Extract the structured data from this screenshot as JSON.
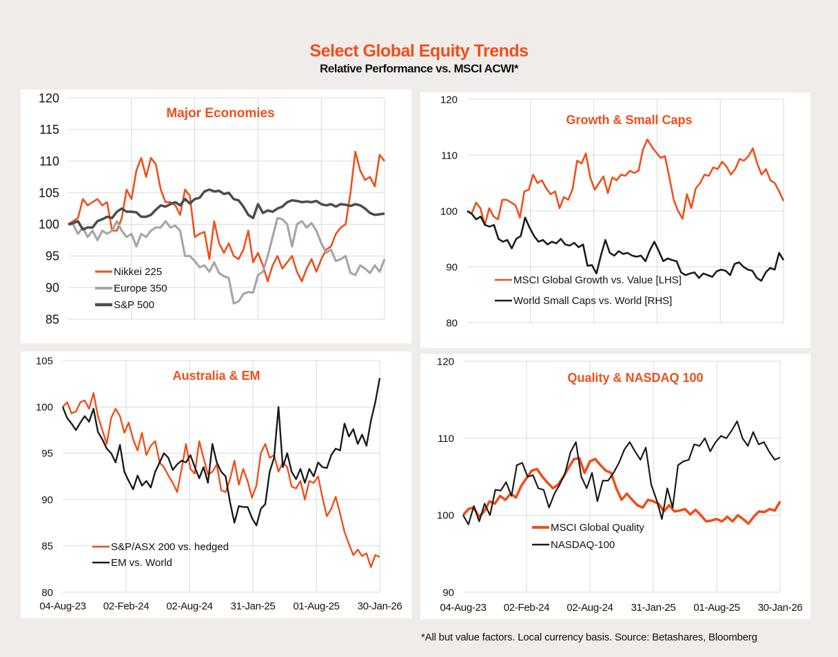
{
  "header": {
    "title": "Select Global Equity Trends",
    "subtitle": "Relative Performance vs. MSCI ACWI*"
  },
  "footnote": "*All but value factors. Local currency basis.  Source: Betashares, Bloomberg",
  "colors": {
    "orange": "#f04e1a",
    "grey_light": "#a6a6a6",
    "grey_dark": "#4d4d4d",
    "black": "#1a1a1a",
    "title": "#f04e1a"
  },
  "chart_data": [
    {
      "id": "major",
      "type": "line",
      "title": "Major Economies",
      "xlabel": "",
      "ylabel": "",
      "x_range": [
        "04-Aug-23",
        "30-Jan-26"
      ],
      "xtick_labels": [],
      "ylim": [
        85,
        120
      ],
      "yticks": [
        85,
        90,
        95,
        100,
        105,
        110,
        115,
        120
      ],
      "grid": true,
      "legend": "bottom-left",
      "series": [
        {
          "name": "Nikkei 225",
          "color": "#f04e1a",
          "values": [
            100,
            100.5,
            101,
            104,
            103,
            103.5,
            104,
            103,
            103.5,
            99,
            99,
            101,
            105.5,
            104,
            108.5,
            110.5,
            107.5,
            110.5,
            109.5,
            105.5,
            103.5,
            103.5,
            103,
            101.5,
            105.5,
            104.5,
            98,
            98.5,
            98.8,
            94.5,
            100.5,
            97,
            95.5,
            97,
            95,
            94.5,
            96,
            99,
            94,
            95.5,
            93.5,
            91,
            93.5,
            95,
            93,
            94,
            95,
            92.5,
            91,
            93,
            94.5,
            92.5,
            94.5,
            96,
            96.5,
            98.5,
            99.5,
            100,
            105,
            111.5,
            108.5,
            107,
            107.5,
            106,
            111,
            110
          ]
        },
        {
          "name": "Europe 350",
          "color": "#a6a6a6",
          "values": [
            100,
            100,
            98.5,
            99.5,
            98,
            99,
            97.5,
            99,
            98.5,
            99,
            100.5,
            99,
            98,
            98.5,
            96.5,
            98.5,
            98,
            99,
            99.5,
            99.5,
            100.5,
            99.5,
            99.8,
            99,
            95,
            95,
            94.2,
            93.2,
            93.5,
            92.5,
            94,
            92.3,
            91.8,
            91.5,
            87.5,
            87.8,
            89,
            89.3,
            89.2,
            92,
            92.5,
            95,
            98,
            101,
            100.8,
            100,
            96.5,
            100,
            100.5,
            99.5,
            100.2,
            99,
            97,
            95.5,
            96,
            94.2,
            94.5,
            95,
            92.3,
            92,
            93.5,
            93,
            92.3,
            93.5,
            92.5,
            94.5
          ]
        },
        {
          "name": "S&P 500",
          "color": "#4d4d4d",
          "values": [
            100,
            100.2,
            100.5,
            99.2,
            99.5,
            99.5,
            100.5,
            100.8,
            101.2,
            101,
            102,
            102.5,
            102,
            102,
            101.9,
            101.2,
            101.2,
            101.5,
            102.3,
            103,
            102.8,
            103.2,
            103.5,
            103,
            104,
            103.3,
            104,
            104.2,
            105.2,
            105.5,
            105.2,
            105.3,
            104.8,
            105,
            104,
            103.8,
            102.8,
            101.5,
            101,
            103.2,
            101.8,
            102.2,
            102,
            102.5,
            102.8,
            103.5,
            103.8,
            103.7,
            103.5,
            103.6,
            103.5,
            103.7,
            103.2,
            103,
            103.2,
            102.8,
            103.2,
            103.1,
            102.9,
            103.2,
            103,
            102.5,
            101.8,
            101.5,
            101.6,
            101.7
          ]
        }
      ]
    },
    {
      "id": "growth",
      "type": "line",
      "title": "Growth & Small Caps",
      "xlabel": "",
      "ylabel": "",
      "x_range": [
        "04-Aug-23",
        "30-Jan-26"
      ],
      "xtick_labels": [],
      "ylim": [
        80,
        120
      ],
      "yticks": [
        80,
        90,
        100,
        110,
        120
      ],
      "grid": true,
      "legend": "bottom-left",
      "series": [
        {
          "name": "MSCI Global Growth vs. Value [LHS]",
          "color": "#f04e1a",
          "values": [
            100,
            99.5,
            101.5,
            100.5,
            97.5,
            100.5,
            99,
            98.5,
            102,
            102,
            101.5,
            101,
            98.8,
            103.5,
            103.8,
            106.5,
            105,
            105.5,
            104,
            103,
            103.5,
            100.5,
            102.5,
            102,
            104,
            109,
            108.5,
            110.3,
            106,
            103.8,
            105,
            106.2,
            103.2,
            106,
            105.5,
            106.5,
            106.3,
            107.2,
            106.8,
            107.2,
            111,
            112.8,
            111.5,
            110.5,
            109.5,
            109.8,
            106,
            102,
            100,
            98.6,
            103,
            100.5,
            104,
            105,
            106.5,
            106.3,
            107.8,
            107.5,
            108.8,
            108,
            106.5,
            107.5,
            109.3,
            109,
            109.8,
            111.2,
            108.5,
            106.5,
            107.5,
            105.5,
            105,
            103.5,
            101.8
          ]
        },
        {
          "name": "World Small Caps vs. World [RHS]",
          "color": "#1a1a1a",
          "values": [
            100,
            99.5,
            98.5,
            99,
            97.5,
            97.2,
            97.5,
            95,
            94.5,
            94.8,
            93.3,
            95,
            95.5,
            98.8,
            97,
            95.5,
            94.5,
            94.8,
            94,
            94.5,
            94.2,
            95,
            94,
            93.8,
            94.3,
            93.5,
            94,
            90.2,
            90.3,
            88.8,
            92,
            94.8,
            92.5,
            92,
            92.8,
            92.3,
            92.5,
            92,
            91.8,
            92,
            91,
            93,
            94.5,
            92.8,
            91,
            91.5,
            91.2,
            91,
            89,
            88.5,
            88.8,
            89,
            88,
            88.8,
            88.5,
            88.2,
            89.2,
            89.5,
            89.3,
            88.5,
            90.5,
            90.8,
            90,
            89.5,
            89.3,
            88,
            87.5,
            89,
            89.8,
            89.5,
            92.5,
            91.2
          ]
        }
      ]
    },
    {
      "id": "australia",
      "type": "line",
      "title": "Australia & EM",
      "xlabel": "",
      "ylabel": "",
      "x_range": [
        "04-Aug-23",
        "30-Jan-26"
      ],
      "xtick_labels": [
        "04-Aug-23",
        "02-Feb-24",
        "02-Aug-24",
        "31-Jan-25",
        "01-Aug-25",
        "30-Jan-26"
      ],
      "ylim": [
        80,
        105
      ],
      "yticks": [
        80,
        85,
        90,
        95,
        100,
        105
      ],
      "grid": true,
      "legend": "bottom-left",
      "series": [
        {
          "name": "S&P/ASX 200 vs. hedged",
          "color": "#f04e1a",
          "values": [
            100,
            100.5,
            99.3,
            99.5,
            100.5,
            100.7,
            99.8,
            101.5,
            99,
            97.5,
            96,
            98.8,
            99.8,
            99,
            97.2,
            98.3,
            96.5,
            95.3,
            97.2,
            94.8,
            95.8,
            96.3,
            94,
            93.5,
            92.6,
            91.8,
            90.8,
            93.3,
            96,
            93.3,
            92.8,
            96.3,
            94.5,
            92.7,
            93,
            93.8,
            91,
            90.8,
            92.2,
            94.2,
            91.6,
            93.3,
            92,
            90.2,
            91.5,
            95,
            96,
            94.5,
            94.8,
            93,
            94,
            93.5,
            91.4,
            91.2,
            92,
            90,
            92,
            91.8,
            92.5,
            90.2,
            88.2,
            89,
            90.3,
            88.5,
            86.5,
            85.2,
            84,
            84.6,
            83.9,
            84.2,
            82.7,
            84,
            83.8
          ]
        },
        {
          "name": "EM vs. World",
          "color": "#1a1a1a",
          "values": [
            100,
            98.8,
            98.2,
            97.5,
            98.3,
            99,
            98.4,
            99.8,
            97.3,
            96.5,
            95.5,
            95,
            94,
            95.9,
            93,
            92,
            91.1,
            92.6,
            91.5,
            92,
            91.3,
            93,
            94,
            95,
            94.5,
            93.2,
            93.8,
            94.2,
            94,
            94.8,
            93.5,
            92.3,
            93.5,
            91.8,
            96,
            94,
            93,
            92.5,
            89.7,
            87.5,
            89.3,
            89.2,
            89.2,
            88,
            87.2,
            89,
            89.5,
            93,
            94.5,
            100,
            93.5,
            95,
            93,
            92.2,
            93.3,
            91.8,
            93.3,
            92.5,
            94,
            93.5,
            93.4,
            94.8,
            95.5,
            95.3,
            98.2,
            96.8,
            97.6,
            96,
            97,
            95.8,
            98.5,
            100.5,
            103.1
          ]
        }
      ]
    },
    {
      "id": "quality",
      "type": "line",
      "title": "Quality & NASDAQ 100",
      "xlabel": "",
      "ylabel": "",
      "x_range": [
        "04-Aug-23",
        "30-Jan-26"
      ],
      "xtick_labels": [
        "04-Aug-23",
        "02-Feb-24",
        "02-Aug-24",
        "31-Jan-25",
        "01-Aug-25",
        "30-Jan-26"
      ],
      "ylim": [
        90,
        120
      ],
      "yticks": [
        90,
        100,
        110,
        120
      ],
      "grid": true,
      "legend": "bottom-left",
      "series": [
        {
          "name": "MSCI Global Quality",
          "color": "#f04e1a",
          "values": [
            100,
            100.8,
            101,
            99.8,
            100.5,
            101.8,
            101.5,
            102.5,
            102,
            102.8,
            102.3,
            103.8,
            104.8,
            105.8,
            106,
            105,
            104.2,
            103.5,
            104,
            105,
            106.2,
            107.3,
            107.4,
            105.5,
            107,
            107.3,
            106.5,
            105.8,
            105.5,
            103.5,
            102,
            102.8,
            102,
            101.3,
            101,
            102,
            101.8,
            101.5,
            100.5,
            101.3,
            100.5,
            100.6,
            100.8,
            100.1,
            100.7,
            100,
            99.2,
            99.3,
            99.5,
            99.2,
            99.8,
            99.2,
            100,
            99.5,
            98.9,
            99.8,
            100.5,
            100.4,
            100.8,
            100.6,
            101.8
          ]
        },
        {
          "name": "NASDAQ-100",
          "color": "#1a1a1a",
          "values": [
            100,
            98.8,
            101.2,
            99.2,
            101.5,
            100,
            103.3,
            103.2,
            104.3,
            102.5,
            106.5,
            106.8,
            105,
            105.2,
            103.5,
            103.3,
            101,
            102.8,
            104,
            105.5,
            108.2,
            109.5,
            105,
            103.5,
            105.5,
            101.8,
            104.5,
            104.5,
            105.5,
            106.8,
            108.5,
            109.5,
            108.3,
            107.2,
            108.8,
            104,
            102,
            99.5,
            103.5,
            101,
            106.5,
            107,
            107.2,
            109.2,
            109,
            110,
            108.3,
            109.5,
            110.3,
            110,
            111,
            112.2,
            110,
            109,
            110.8,
            109.2,
            109.5,
            108.2,
            107.2,
            107.5
          ]
        }
      ]
    }
  ]
}
